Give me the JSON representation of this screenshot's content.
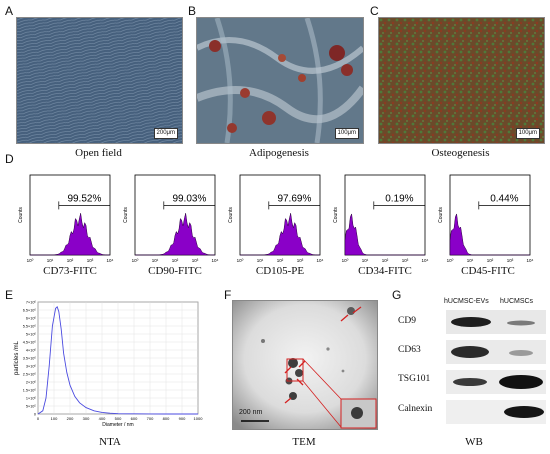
{
  "panel_letters": [
    "A",
    "B",
    "C",
    "D",
    "E",
    "F",
    "G"
  ],
  "micrographs": [
    {
      "caption": "Open field",
      "scale": "200μm",
      "tint": "#5a6f86"
    },
    {
      "caption": "Adipogenesis",
      "scale": "100μm",
      "tint": "#5b7387"
    },
    {
      "caption": "Osteogenesis",
      "scale": "100μm",
      "tint": "#6a4b2a"
    }
  ],
  "flow": {
    "y_label": "Counts",
    "x_ticks": [
      "10⁰",
      "10¹",
      "10²",
      "10³",
      "10⁴"
    ],
    "panels": [
      {
        "marker": "CD73-FITC",
        "percent": "99.52%"
      },
      {
        "marker": "CD90-FITC",
        "percent": "99.03%"
      },
      {
        "marker": "CD105-PE",
        "percent": "97.69%"
      },
      {
        "marker": "CD34-FITC",
        "percent": "0.19%"
      },
      {
        "marker": "CD45-FITC",
        "percent": "0.44%"
      }
    ]
  },
  "chart_data": {
    "type": "line",
    "title": "",
    "xlabel": "Diameter / nm",
    "ylabel": "particles /mL",
    "xlim": [
      0,
      1000
    ],
    "ylim": [
      0,
      7000000
    ],
    "x_ticks": [
      "0",
      "100",
      "200",
      "300",
      "400",
      "500",
      "600",
      "700",
      "800",
      "900",
      "1000"
    ],
    "y_ticks": [
      "0",
      "5×10⁵",
      "1×10⁶",
      "1.5×10⁶",
      "2×10⁶",
      "2.5×10⁶",
      "3×10⁶",
      "3.5×10⁶",
      "4×10⁶",
      "4.5×10⁶",
      "5×10⁶",
      "5.5×10⁶",
      "6×10⁶",
      "6.5×10⁶",
      "7×10⁶"
    ],
    "series": [
      {
        "x": [
          0,
          30,
          50,
          70,
          90,
          110,
          120,
          130,
          145,
          160,
          180,
          200,
          230,
          260,
          300,
          350,
          400,
          450,
          500,
          600,
          700,
          800,
          1000
        ],
        "y": [
          0,
          200000,
          1000000,
          3000000,
          5500000,
          6600000,
          6700000,
          6400000,
          5300000,
          3800000,
          2600000,
          1800000,
          1100000,
          700000,
          400000,
          200000,
          100000,
          50000,
          20000,
          10000,
          5000,
          0,
          0
        ]
      }
    ]
  },
  "captions": {
    "nta": "NTA",
    "tem": "TEM",
    "wb": "WB"
  },
  "tem": {
    "scale": "200 nm"
  },
  "wb": {
    "columns": [
      "hUCMSC-EVs",
      "hUCMSCs"
    ],
    "rows": [
      "CD9",
      "CD63",
      "TSG101",
      "Calnexin"
    ]
  }
}
